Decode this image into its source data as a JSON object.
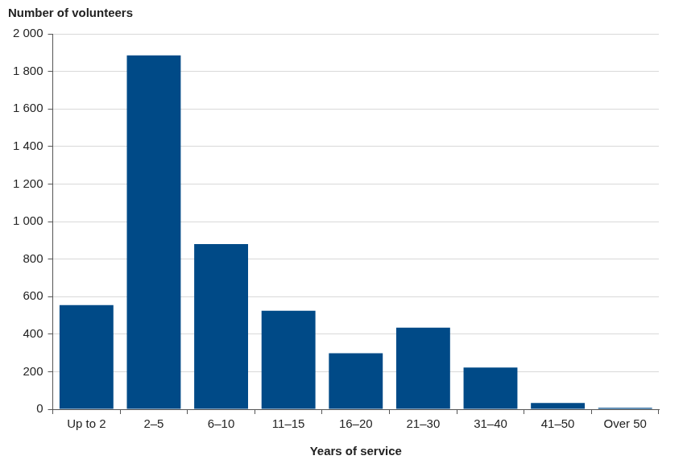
{
  "chart_data": {
    "type": "bar",
    "ylabel": "Number of volunteers",
    "xlabel": "Years of service",
    "categories": [
      "Up to 2",
      "2–5",
      "6–10",
      "11–15",
      "16–20",
      "21–30",
      "31–40",
      "41–50",
      "Over 50"
    ],
    "values": [
      555,
      1885,
      880,
      525,
      298,
      435,
      222,
      33,
      8
    ],
    "color": "#004a87",
    "ylim": [
      0,
      2000
    ],
    "yticks": [
      0,
      200,
      400,
      600,
      800,
      {
        "value": 1000,
        "label": "1 000"
      },
      {
        "value": 1200,
        "label": "1 200"
      },
      {
        "value": 1400,
        "label": "1 400"
      },
      {
        "value": 1600,
        "label": "1 600"
      },
      {
        "value": 1800,
        "label": "1 800"
      },
      {
        "value": 2000,
        "label": "2 000"
      }
    ],
    "grid": true
  }
}
